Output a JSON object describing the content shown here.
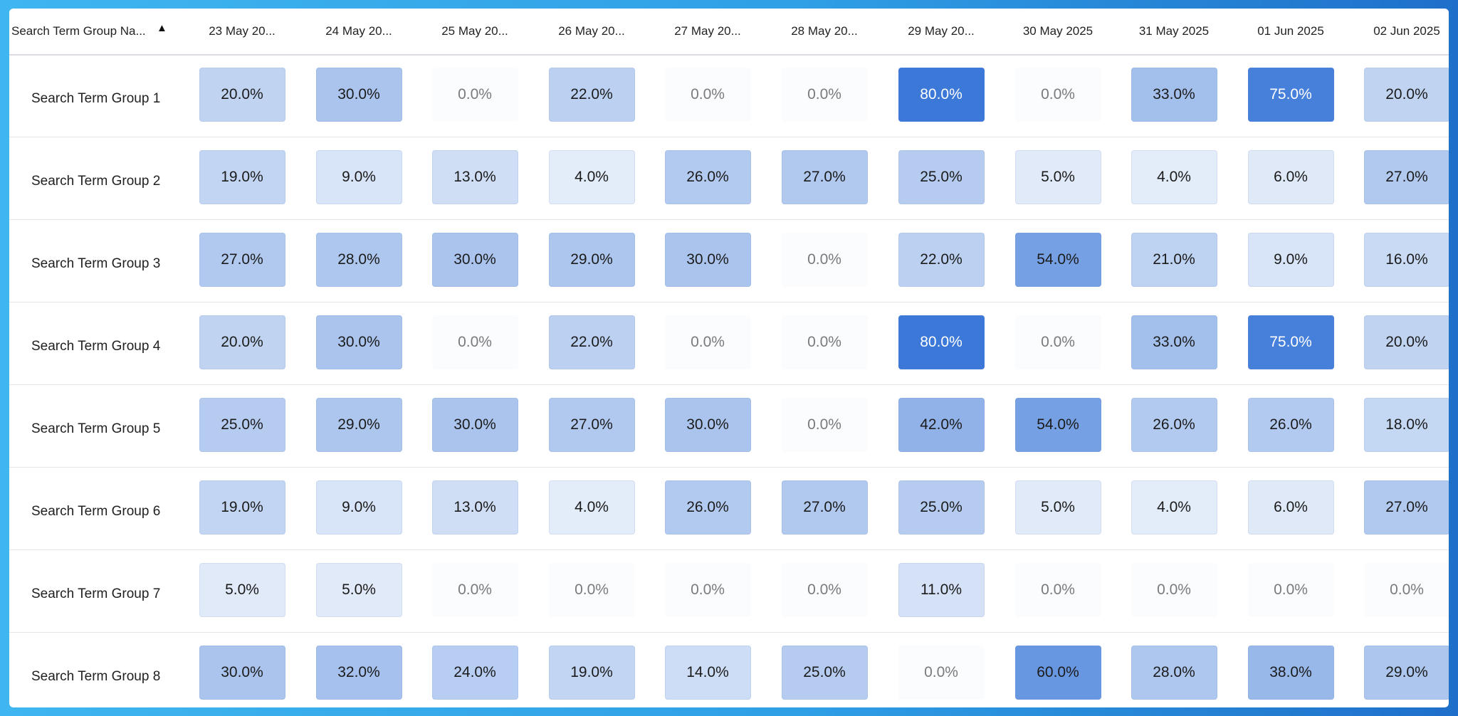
{
  "table": {
    "header_first": "Search Term Group Na...",
    "sort_icon": "sort-ascending-icon",
    "columns": [
      "23 May 20...",
      "24 May 20...",
      "25 May 20...",
      "26 May 20...",
      "27 May 20...",
      "28 May 20...",
      "29 May 20...",
      "30 May 2025",
      "31 May 2025",
      "01 Jun 2025",
      "02 Jun 2025"
    ],
    "rows": [
      {
        "name": "Search Term Group 1",
        "values": [
          "20.0%",
          "30.0%",
          "0.0%",
          "22.0%",
          "0.0%",
          "0.0%",
          "80.0%",
          "0.0%",
          "33.0%",
          "75.0%",
          "20.0%"
        ]
      },
      {
        "name": "Search Term Group 2",
        "values": [
          "19.0%",
          "9.0%",
          "13.0%",
          "4.0%",
          "26.0%",
          "27.0%",
          "25.0%",
          "5.0%",
          "4.0%",
          "6.0%",
          "27.0%"
        ]
      },
      {
        "name": "Search Term Group 3",
        "values": [
          "27.0%",
          "28.0%",
          "30.0%",
          "29.0%",
          "30.0%",
          "0.0%",
          "22.0%",
          "54.0%",
          "21.0%",
          "9.0%",
          "16.0%"
        ]
      },
      {
        "name": "Search Term Group 4",
        "values": [
          "20.0%",
          "30.0%",
          "0.0%",
          "22.0%",
          "0.0%",
          "0.0%",
          "80.0%",
          "0.0%",
          "33.0%",
          "75.0%",
          "20.0%"
        ]
      },
      {
        "name": "Search Term Group 5",
        "values": [
          "25.0%",
          "29.0%",
          "30.0%",
          "27.0%",
          "30.0%",
          "0.0%",
          "42.0%",
          "54.0%",
          "26.0%",
          "26.0%",
          "18.0%"
        ]
      },
      {
        "name": "Search Term Group 6",
        "values": [
          "19.0%",
          "9.0%",
          "13.0%",
          "4.0%",
          "26.0%",
          "27.0%",
          "25.0%",
          "5.0%",
          "4.0%",
          "6.0%",
          "27.0%"
        ]
      },
      {
        "name": "Search Term Group 7",
        "values": [
          "5.0%",
          "5.0%",
          "0.0%",
          "0.0%",
          "0.0%",
          "0.0%",
          "11.0%",
          "0.0%",
          "0.0%",
          "0.0%",
          "0.0%"
        ]
      },
      {
        "name": "Search Term Group 8",
        "values": [
          "30.0%",
          "32.0%",
          "24.0%",
          "19.0%",
          "14.0%",
          "25.0%",
          "0.0%",
          "60.0%",
          "28.0%",
          "38.0%",
          "29.0%"
        ]
      }
    ]
  },
  "colors": {
    "frame_gradient_start": "#3fb6ef",
    "frame_gradient_end": "#1f6fc9",
    "heat_low": "#eef3fb",
    "heat_high": "#3c78d8"
  }
}
